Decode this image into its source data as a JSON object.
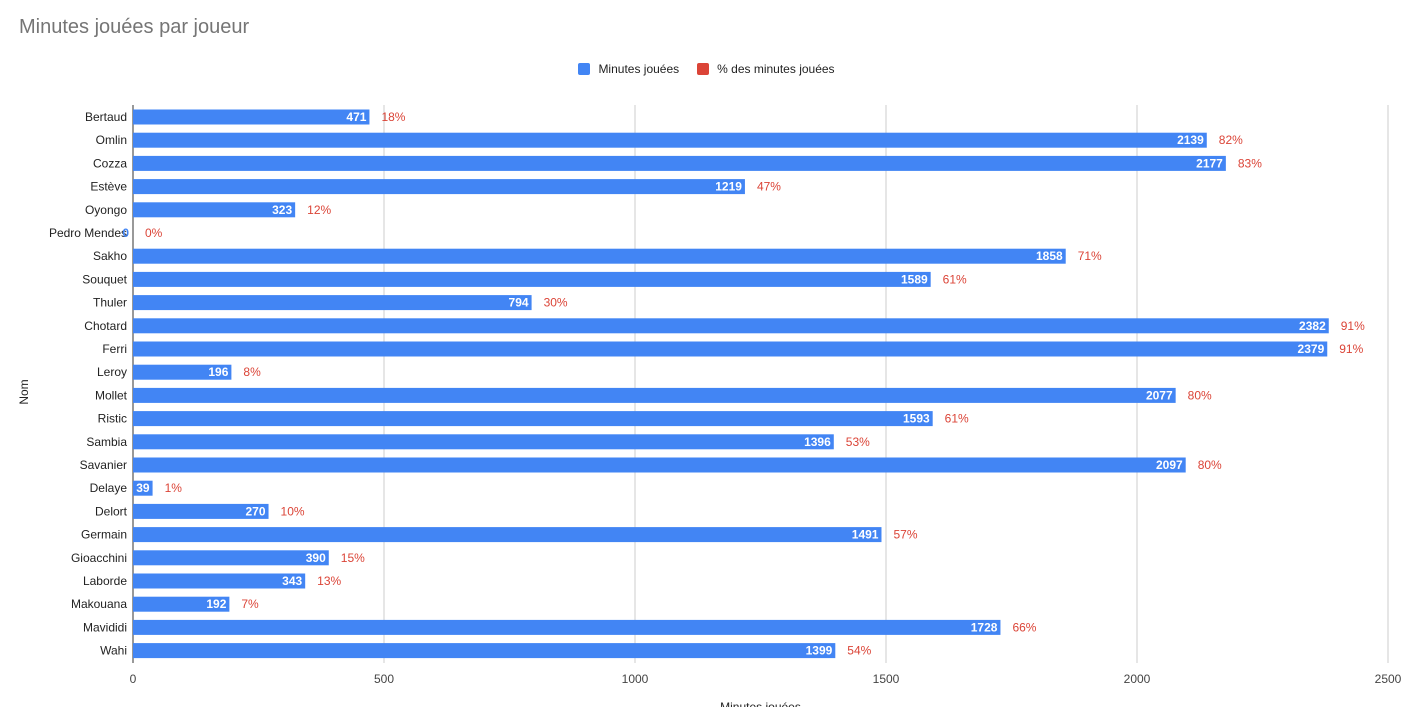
{
  "chart_data": {
    "type": "bar",
    "orientation": "horizontal",
    "title": "Minutes jouées par joueur",
    "xlabel": "Minutes jouées",
    "ylabel": "Nom",
    "xlim": [
      0,
      2500
    ],
    "x_ticks": [
      "0",
      "500",
      "1000",
      "1500",
      "2000",
      "2500"
    ],
    "x_tick_values": [
      0,
      500,
      1000,
      1500,
      2000,
      2500
    ],
    "grid": true,
    "legend_position": "top",
    "categories": [
      "Bertaud",
      "Omlin",
      "Cozza",
      "Estève",
      "Oyongo",
      "Pedro Mendes",
      "Sakho",
      "Souquet",
      "Thuler",
      "Chotard",
      "Ferri",
      "Leroy",
      "Mollet",
      "Ristic",
      "Sambia",
      "Savanier",
      "Delaye",
      "Delort",
      "Germain",
      "Gioacchini",
      "Laborde",
      "Makouana",
      "Mavididi",
      "Wahi"
    ],
    "series": [
      {
        "name": "Minutes jouées",
        "color": "#4285f4",
        "values": [
          471,
          2139,
          2177,
          1219,
          323,
          0,
          1858,
          1589,
          794,
          2382,
          2379,
          196,
          2077,
          1593,
          1396,
          2097,
          39,
          270,
          1491,
          390,
          343,
          192,
          1728,
          1399
        ],
        "labels": [
          "471",
          "2139",
          "2177",
          "1219",
          "323",
          "0",
          "1858",
          "1589",
          "794",
          "2382",
          "2379",
          "196",
          "2077",
          "1593",
          "1396",
          "2097",
          "39",
          "270",
          "1491",
          "390",
          "343",
          "192",
          "1728",
          "1399"
        ]
      },
      {
        "name": "% des minutes jouées",
        "color": "#db4437",
        "values": [
          18,
          82,
          83,
          47,
          12,
          0,
          71,
          61,
          30,
          91,
          91,
          8,
          80,
          61,
          53,
          80,
          1,
          10,
          57,
          15,
          13,
          7,
          66,
          54
        ],
        "labels": [
          "18%",
          "82%",
          "83%",
          "47%",
          "12%",
          "0%",
          "71%",
          "61%",
          "30%",
          "91%",
          "91%",
          "8%",
          "80%",
          "61%",
          "53%",
          "80%",
          "1%",
          "10%",
          "57%",
          "15%",
          "13%",
          "7%",
          "66%",
          "54%"
        ]
      }
    ]
  }
}
